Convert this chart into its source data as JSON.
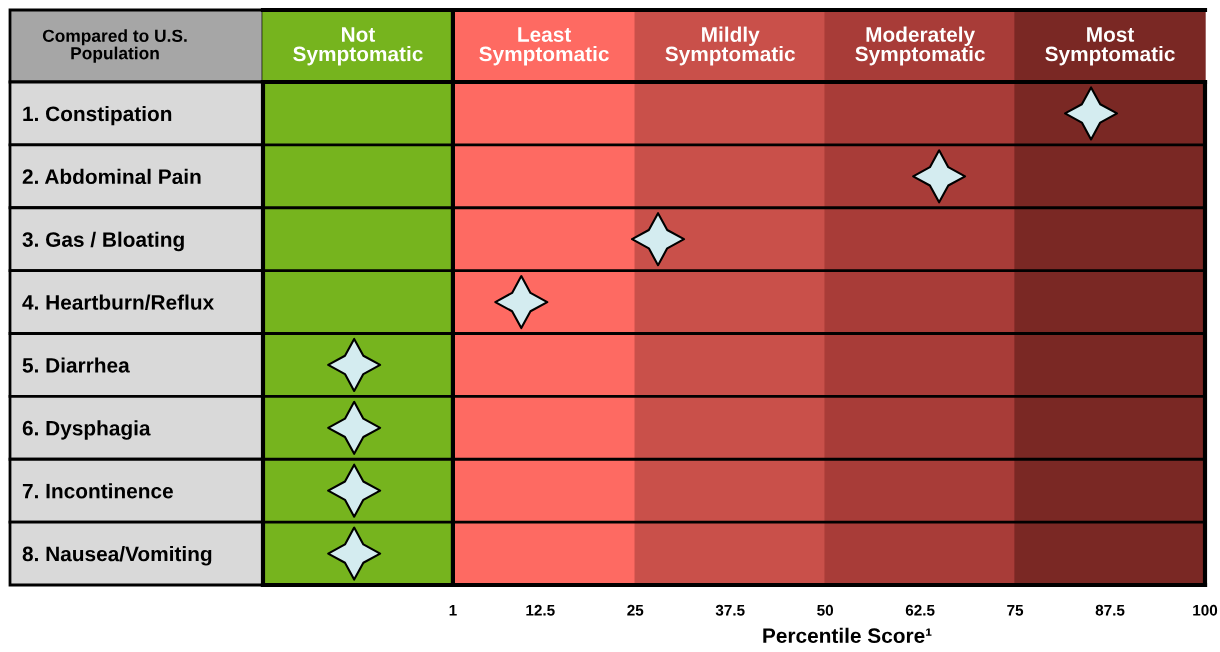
{
  "chart_data": {
    "type": "scatter",
    "ylabel": "Compared to U.S.\nPopulation",
    "xlabel": "Percentile Score¹",
    "categories": [
      "1. Constipation",
      "2. Abdominal Pain",
      "3. Gas / Bloating",
      "4. Heartburn/Reflux",
      "5. Diarrhea",
      "6. Dysphagia",
      "7. Incontinence",
      "8. Nausea/Vomiting"
    ],
    "orientation": "horizontal",
    "series": [
      {
        "color": "#d4ecf0",
        "values": [
          85,
          65,
          28,
          10,
          -12,
          -12,
          -12,
          -12
        ]
      }
    ],
    "marker": "star",
    "xlim": [
      -24,
      100
    ],
    "xticks": [
      1,
      12.5,
      25,
      37.5,
      50,
      62.5,
      75,
      87.5,
      100
    ],
    "bands": [
      {
        "axis": "x",
        "from": -24,
        "to": 1,
        "label": "Not\nSymptomatic",
        "color": "#76b41e"
      },
      {
        "axis": "x",
        "from": 1,
        "to": 25,
        "label": "Least\nSymptomatic",
        "color": "#fe6a62"
      },
      {
        "axis": "x",
        "from": 25,
        "to": 50,
        "label": "Mildly\nSymptomatic",
        "color": "#c9504a"
      },
      {
        "axis": "x",
        "from": 50,
        "to": 75,
        "label": "Moderately\nSymptomatic",
        "color": "#a83c38"
      },
      {
        "axis": "x",
        "from": 75,
        "to": 100,
        "label": "Most\nSymptomatic",
        "color": "#7a2824"
      }
    ],
    "ref_lines": [
      {
        "axis": "x",
        "value": 1,
        "color": "#000000"
      }
    ],
    "grid": false,
    "legend": false
  }
}
